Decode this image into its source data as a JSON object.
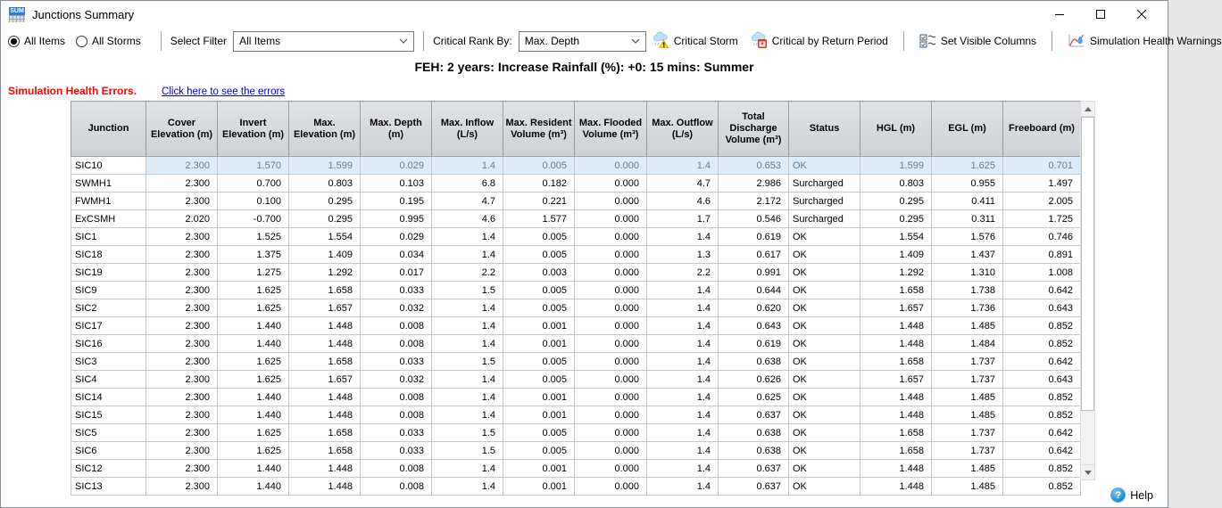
{
  "window": {
    "title": "Junctions Summary",
    "icon_label": "SUM"
  },
  "toolbar": {
    "radio_all_items": "All Items",
    "radio_all_storms": "All Storms",
    "select_filter_label": "Select Filter",
    "select_filter_value": "All Items",
    "critical_rank_label": "Critical Rank By:",
    "critical_rank_value": "Max. Depth",
    "critical_storm_label": "Critical Storm",
    "critical_by_return_period_label": "Critical by Return Period",
    "set_visible_columns_label": "Set Visible Columns",
    "simulation_health_warnings_label": "Simulation Health Warnings"
  },
  "caption": "FEH: 2 years: Increase Rainfall (%): +0: 15 mins: Summer",
  "health": {
    "error_text": "Simulation Health Errors.",
    "link_text": "Click here to see the errors"
  },
  "table": {
    "columns": [
      "Junction",
      "Cover\nElevation (m)",
      "Invert\nElevation (m)",
      "Max.\nElevation (m)",
      "Max. Depth\n(m)",
      "Max. Inflow\n(L/s)",
      "Max. Resident\nVolume (m³)",
      "Max. Flooded\nVolume (m³)",
      "Max. Outflow\n(L/s)",
      "Total\nDischarge\nVolume (m³)",
      "Status",
      "HGL (m)",
      "EGL (m)",
      "Freeboard (m)"
    ],
    "selected_row": 0,
    "rows": [
      [
        "SIC10",
        "2.300",
        "1.570",
        "1.599",
        "0.029",
        "1.4",
        "0.005",
        "0.000",
        "1.4",
        "0.653",
        "OK",
        "1.599",
        "1.625",
        "0.701"
      ],
      [
        "SWMH1",
        "2.300",
        "0.700",
        "0.803",
        "0.103",
        "6.8",
        "0.182",
        "0.000",
        "4.7",
        "2.986",
        "Surcharged",
        "0.803",
        "0.955",
        "1.497"
      ],
      [
        "FWMH1",
        "2.300",
        "0.100",
        "0.295",
        "0.195",
        "4.7",
        "0.221",
        "0.000",
        "4.6",
        "2.172",
        "Surcharged",
        "0.295",
        "0.411",
        "2.005"
      ],
      [
        "ExCSMH",
        "2.020",
        "-0.700",
        "0.295",
        "0.995",
        "4.6",
        "1.577",
        "0.000",
        "1.7",
        "0.546",
        "Surcharged",
        "0.295",
        "0.311",
        "1.725"
      ],
      [
        "SIC1",
        "2.300",
        "1.525",
        "1.554",
        "0.029",
        "1.4",
        "0.005",
        "0.000",
        "1.4",
        "0.619",
        "OK",
        "1.554",
        "1.576",
        "0.746"
      ],
      [
        "SIC18",
        "2.300",
        "1.375",
        "1.409",
        "0.034",
        "1.4",
        "0.005",
        "0.000",
        "1.3",
        "0.617",
        "OK",
        "1.409",
        "1.437",
        "0.891"
      ],
      [
        "SIC19",
        "2.300",
        "1.275",
        "1.292",
        "0.017",
        "2.2",
        "0.003",
        "0.000",
        "2.2",
        "0.991",
        "OK",
        "1.292",
        "1.310",
        "1.008"
      ],
      [
        "SIC9",
        "2.300",
        "1.625",
        "1.658",
        "0.033",
        "1.5",
        "0.005",
        "0.000",
        "1.4",
        "0.644",
        "OK",
        "1.658",
        "1.738",
        "0.642"
      ],
      [
        "SIC2",
        "2.300",
        "1.625",
        "1.657",
        "0.032",
        "1.4",
        "0.005",
        "0.000",
        "1.4",
        "0.620",
        "OK",
        "1.657",
        "1.736",
        "0.643"
      ],
      [
        "SIC17",
        "2.300",
        "1.440",
        "1.448",
        "0.008",
        "1.4",
        "0.001",
        "0.000",
        "1.4",
        "0.643",
        "OK",
        "1.448",
        "1.485",
        "0.852"
      ],
      [
        "SIC16",
        "2.300",
        "1.440",
        "1.448",
        "0.008",
        "1.4",
        "0.001",
        "0.000",
        "1.4",
        "0.619",
        "OK",
        "1.448",
        "1.484",
        "0.852"
      ],
      [
        "SIC3",
        "2.300",
        "1.625",
        "1.658",
        "0.033",
        "1.5",
        "0.005",
        "0.000",
        "1.4",
        "0.638",
        "OK",
        "1.658",
        "1.737",
        "0.642"
      ],
      [
        "SIC4",
        "2.300",
        "1.625",
        "1.657",
        "0.032",
        "1.4",
        "0.005",
        "0.000",
        "1.4",
        "0.626",
        "OK",
        "1.657",
        "1.737",
        "0.643"
      ],
      [
        "SIC14",
        "2.300",
        "1.440",
        "1.448",
        "0.008",
        "1.4",
        "0.001",
        "0.000",
        "1.4",
        "0.625",
        "OK",
        "1.448",
        "1.485",
        "0.852"
      ],
      [
        "SIC15",
        "2.300",
        "1.440",
        "1.448",
        "0.008",
        "1.4",
        "0.001",
        "0.000",
        "1.4",
        "0.637",
        "OK",
        "1.448",
        "1.485",
        "0.852"
      ],
      [
        "SIC5",
        "2.300",
        "1.625",
        "1.658",
        "0.033",
        "1.5",
        "0.005",
        "0.000",
        "1.4",
        "0.638",
        "OK",
        "1.658",
        "1.737",
        "0.642"
      ],
      [
        "SIC6",
        "2.300",
        "1.625",
        "1.658",
        "0.033",
        "1.5",
        "0.005",
        "0.000",
        "1.4",
        "0.638",
        "OK",
        "1.658",
        "1.737",
        "0.642"
      ],
      [
        "SIC12",
        "2.300",
        "1.440",
        "1.448",
        "0.008",
        "1.4",
        "0.001",
        "0.000",
        "1.4",
        "0.637",
        "OK",
        "1.448",
        "1.485",
        "0.852"
      ],
      [
        "SIC13",
        "2.300",
        "1.440",
        "1.448",
        "0.008",
        "1.4",
        "0.001",
        "0.000",
        "1.4",
        "0.637",
        "OK",
        "1.448",
        "1.485",
        "0.852"
      ]
    ]
  },
  "footer": {
    "help_label": "Help"
  },
  "colors": {
    "selected_row_bg": "#dcecf9",
    "selected_row_text": "#5d7e95",
    "error_red": "#ff0000",
    "link_blue": "#0000ee",
    "header_bg": "#d4d7da",
    "app_icon_blue": "#2a7fd4"
  },
  "icons": {
    "app-icon": "summary-grid",
    "critical-storm-icon": "rain-cloud-warning",
    "critical-return-icon": "rain-cloud-calendar",
    "set-visible-columns-icon": "checkbox-list",
    "simulation-health-icon": "hydrograph-warning",
    "help-icon": "question-circle"
  }
}
